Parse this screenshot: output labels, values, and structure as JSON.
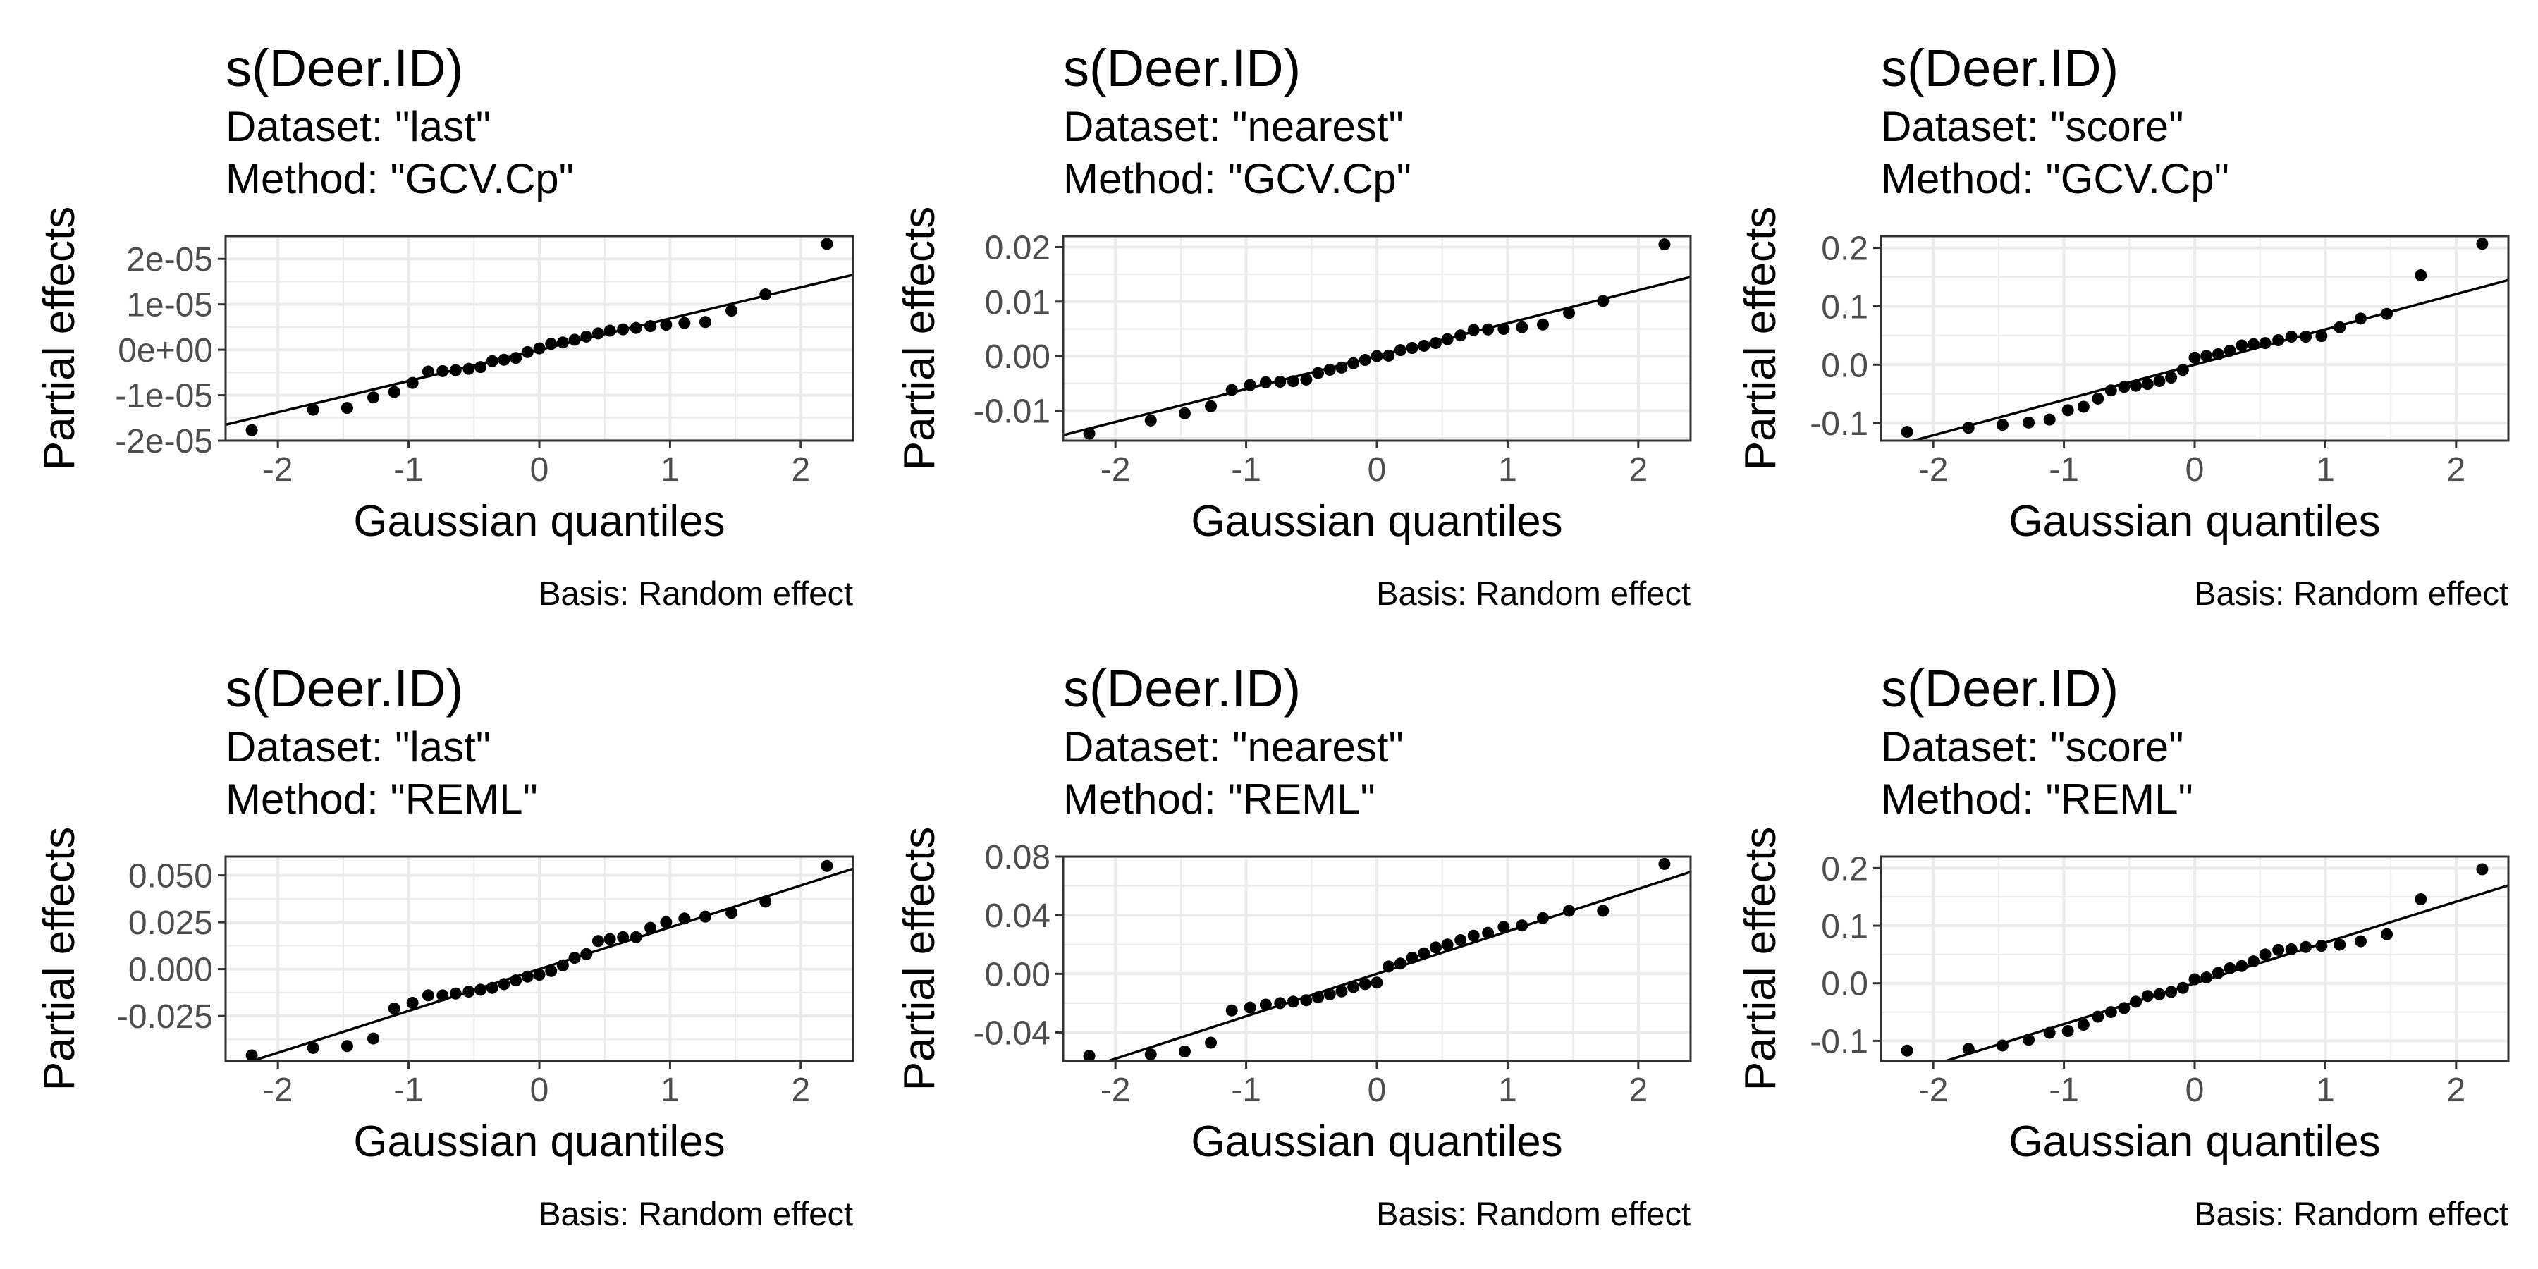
{
  "figure": {
    "background": "#ffffff",
    "point_color": "#000000",
    "line_color": "#000000",
    "grid_color": "#ebebeb"
  },
  "chart_data": [
    {
      "type": "scatter",
      "title": "s(Deer.ID)",
      "subtitle_lines": [
        "Dataset: \"last\"",
        "Method: \"GCV.Cp\""
      ],
      "xlabel": "Gaussian quantiles",
      "ylabel": "Partial effects",
      "caption": "Basis: Random effect",
      "xlim": [
        -2.4,
        2.4
      ],
      "ylim": [
        -2e-05,
        2.5e-05
      ],
      "x_ticks": [
        -2,
        -1,
        0,
        1,
        2
      ],
      "x_tick_labels": [
        "-2",
        "-1",
        "0",
        "1",
        "2"
      ],
      "y_ticks": [
        -2e-05,
        -1e-05,
        0,
        1e-05,
        2e-05
      ],
      "y_tick_labels": [
        "-2e-05",
        "-1e-05",
        "0e+00",
        "1e-05",
        "2e-05"
      ],
      "grid": true,
      "reference_line": {
        "x": [
          -2.4,
          2.4
        ],
        "y": [
          -1.65e-05,
          1.65e-05
        ]
      },
      "x": [
        -2.2,
        -1.73,
        -1.47,
        -1.27,
        -1.11,
        -0.97,
        -0.85,
        -0.74,
        -0.64,
        -0.54,
        -0.45,
        -0.36,
        -0.27,
        -0.18,
        -0.09,
        0,
        0.09,
        0.18,
        0.27,
        0.36,
        0.45,
        0.54,
        0.64,
        0.74,
        0.85,
        0.97,
        1.11,
        1.27,
        1.47,
        1.73,
        2.2
      ],
      "y": [
        -1.77e-05,
        -1.32e-05,
        -1.28e-05,
        -1.05e-05,
        -9.3e-06,
        -7.3e-06,
        -4.8e-06,
        -4.7e-06,
        -4.5e-06,
        -4.2e-06,
        -3.8e-06,
        -2.5e-06,
        -2.2e-06,
        -1.8e-06,
        -5e-07,
        3e-07,
        1.3e-06,
        1.6e-06,
        2.2e-06,
        2.9e-06,
        3.6e-06,
        4.2e-06,
        4.5e-06,
        4.8e-06,
        5.2e-06,
        5.5e-06,
        5.9e-06,
        6.1e-06,
        8.6e-06,
        1.22e-05,
        2.33e-05
      ]
    },
    {
      "type": "scatter",
      "title": "s(Deer.ID)",
      "subtitle_lines": [
        "Dataset: \"nearest\"",
        "Method: \"GCV.Cp\""
      ],
      "xlabel": "Gaussian quantiles",
      "ylabel": "Partial effects",
      "caption": "Basis: Random effect",
      "xlim": [
        -2.4,
        2.4
      ],
      "ylim": [
        -0.0155,
        0.022
      ],
      "x_ticks": [
        -2,
        -1,
        0,
        1,
        2
      ],
      "x_tick_labels": [
        "-2",
        "-1",
        "0",
        "1",
        "2"
      ],
      "y_ticks": [
        -0.01,
        0,
        0.01,
        0.02
      ],
      "y_tick_labels": [
        "-0.01",
        "0.00",
        "0.01",
        "0.02"
      ],
      "grid": true,
      "reference_line": {
        "x": [
          -2.4,
          2.4
        ],
        "y": [
          -0.0145,
          0.0145
        ]
      },
      "x": [
        -2.2,
        -1.73,
        -1.47,
        -1.27,
        -1.11,
        -0.97,
        -0.85,
        -0.74,
        -0.64,
        -0.54,
        -0.45,
        -0.36,
        -0.27,
        -0.18,
        -0.09,
        0,
        0.09,
        0.18,
        0.27,
        0.36,
        0.45,
        0.54,
        0.64,
        0.74,
        0.85,
        0.97,
        1.11,
        1.27,
        1.47,
        1.73,
        2.2
      ],
      "y": [
        -0.0142,
        -0.0118,
        -0.0105,
        -0.0092,
        -0.0062,
        -0.0053,
        -0.0048,
        -0.0047,
        -0.0046,
        -0.0043,
        -0.0031,
        -0.0025,
        -0.0021,
        -0.0013,
        -0.0007,
        0,
        0.0001,
        0.0011,
        0.0015,
        0.0019,
        0.0024,
        0.0031,
        0.0038,
        0.0048,
        0.0049,
        0.005,
        0.0053,
        0.0058,
        0.0079,
        0.0101,
        0.0205
      ]
    },
    {
      "type": "scatter",
      "title": "s(Deer.ID)",
      "subtitle_lines": [
        "Dataset: \"score\"",
        "Method: \"GCV.Cp\""
      ],
      "xlabel": "Gaussian quantiles",
      "ylabel": "Partial effects",
      "caption": "Basis: Random effect",
      "xlim": [
        -2.4,
        2.4
      ],
      "ylim": [
        -0.13,
        0.22
      ],
      "x_ticks": [
        -2,
        -1,
        0,
        1,
        2
      ],
      "x_tick_labels": [
        "-2",
        "-1",
        "0",
        "1",
        "2"
      ],
      "y_ticks": [
        -0.1,
        0,
        0.1,
        0.2
      ],
      "y_tick_labels": [
        "-0.1",
        "0.0",
        "0.1",
        "0.2"
      ],
      "grid": true,
      "reference_line": {
        "x": [
          -2.4,
          2.4
        ],
        "y": [
          -0.145,
          0.145
        ]
      },
      "x": [
        -2.2,
        -1.73,
        -1.47,
        -1.27,
        -1.11,
        -0.97,
        -0.85,
        -0.74,
        -0.64,
        -0.54,
        -0.45,
        -0.36,
        -0.27,
        -0.18,
        -0.09,
        0,
        0.09,
        0.18,
        0.27,
        0.36,
        0.45,
        0.54,
        0.64,
        0.74,
        0.85,
        0.97,
        1.11,
        1.27,
        1.47,
        1.73,
        2.2
      ],
      "y": [
        -0.115,
        -0.108,
        -0.103,
        -0.099,
        -0.094,
        -0.078,
        -0.072,
        -0.058,
        -0.044,
        -0.038,
        -0.036,
        -0.033,
        -0.028,
        -0.022,
        -0.009,
        0.012,
        0.015,
        0.018,
        0.024,
        0.033,
        0.035,
        0.037,
        0.042,
        0.048,
        0.048,
        0.049,
        0.064,
        0.079,
        0.087,
        0.153,
        0.207
      ]
    },
    {
      "type": "scatter",
      "title": "s(Deer.ID)",
      "subtitle_lines": [
        "Dataset: \"last\"",
        "Method: \"REML\""
      ],
      "xlabel": "Gaussian quantiles",
      "ylabel": "Partial effects",
      "caption": "Basis: Random effect",
      "xlim": [
        -2.4,
        2.4
      ],
      "ylim": [
        -0.049,
        0.06
      ],
      "x_ticks": [
        -2,
        -1,
        0,
        1,
        2
      ],
      "x_tick_labels": [
        "-2",
        "-1",
        "0",
        "1",
        "2"
      ],
      "y_ticks": [
        -0.025,
        0,
        0.025,
        0.05
      ],
      "y_tick_labels": [
        "-0.025",
        "0.000",
        "0.025",
        "0.050"
      ],
      "grid": true,
      "reference_line": {
        "x": [
          -2.4,
          2.4
        ],
        "y": [
          -0.0535,
          0.0535
        ]
      },
      "x": [
        -2.2,
        -1.73,
        -1.47,
        -1.27,
        -1.11,
        -0.97,
        -0.85,
        -0.74,
        -0.64,
        -0.54,
        -0.45,
        -0.36,
        -0.27,
        -0.18,
        -0.09,
        0,
        0.09,
        0.18,
        0.27,
        0.36,
        0.45,
        0.54,
        0.64,
        0.74,
        0.85,
        0.97,
        1.11,
        1.27,
        1.47,
        1.73,
        2.2
      ],
      "y": [
        -0.046,
        -0.042,
        -0.041,
        -0.037,
        -0.021,
        -0.018,
        -0.014,
        -0.014,
        -0.013,
        -0.012,
        -0.011,
        -0.01,
        -0.008,
        -0.006,
        -0.004,
        -0.003,
        -0.001,
        0.002,
        0.006,
        0.008,
        0.015,
        0.016,
        0.017,
        0.017,
        0.022,
        0.025,
        0.027,
        0.028,
        0.03,
        0.036,
        0.055
      ]
    },
    {
      "type": "scatter",
      "title": "s(Deer.ID)",
      "subtitle_lines": [
        "Dataset: \"nearest\"",
        "Method: \"REML\""
      ],
      "xlabel": "Gaussian quantiles",
      "ylabel": "Partial effects",
      "caption": "Basis: Random effect",
      "xlim": [
        -2.4,
        2.4
      ],
      "ylim": [
        -0.0595,
        0.08
      ],
      "x_ticks": [
        -2,
        -1,
        0,
        1,
        2
      ],
      "x_tick_labels": [
        "-2",
        "-1",
        "0",
        "1",
        "2"
      ],
      "y_ticks": [
        -0.04,
        0,
        0.04,
        0.08
      ],
      "y_tick_labels": [
        "-0.04",
        "0.00",
        "0.04",
        "0.08"
      ],
      "grid": true,
      "reference_line": {
        "x": [
          -2.4,
          2.4
        ],
        "y": [
          -0.0695,
          0.0695
        ]
      },
      "x": [
        -2.2,
        -1.73,
        -1.47,
        -1.27,
        -1.11,
        -0.97,
        -0.85,
        -0.74,
        -0.64,
        -0.54,
        -0.45,
        -0.36,
        -0.27,
        -0.18,
        -0.09,
        0,
        0.09,
        0.18,
        0.27,
        0.36,
        0.45,
        0.54,
        0.64,
        0.74,
        0.85,
        0.97,
        1.11,
        1.27,
        1.47,
        1.73,
        2.2
      ],
      "y": [
        -0.056,
        -0.055,
        -0.053,
        -0.047,
        -0.025,
        -0.023,
        -0.021,
        -0.02,
        -0.019,
        -0.018,
        -0.016,
        -0.014,
        -0.012,
        -0.009,
        -0.007,
        -0.006,
        0.005,
        0.007,
        0.011,
        0.014,
        0.018,
        0.02,
        0.023,
        0.026,
        0.028,
        0.032,
        0.033,
        0.038,
        0.043,
        0.043,
        0.075
      ]
    },
    {
      "type": "scatter",
      "title": "s(Deer.ID)",
      "subtitle_lines": [
        "Dataset: \"score\"",
        "Method: \"REML\""
      ],
      "xlabel": "Gaussian quantiles",
      "ylabel": "Partial effects",
      "caption": "Basis: Random effect",
      "xlim": [
        -2.4,
        2.4
      ],
      "ylim": [
        -0.135,
        0.22
      ],
      "x_ticks": [
        -2,
        -1,
        0,
        1,
        2
      ],
      "x_tick_labels": [
        "-2",
        "-1",
        "0",
        "1",
        "2"
      ],
      "y_ticks": [
        -0.1,
        0,
        0.1,
        0.2
      ],
      "y_tick_labels": [
        "-0.1",
        "0.0",
        "0.1",
        "0.2"
      ],
      "grid": true,
      "reference_line": {
        "x": [
          -2.4,
          2.4
        ],
        "y": [
          -0.17,
          0.17
        ]
      },
      "x": [
        -2.2,
        -1.73,
        -1.47,
        -1.27,
        -1.11,
        -0.97,
        -0.85,
        -0.74,
        -0.64,
        -0.54,
        -0.45,
        -0.36,
        -0.27,
        -0.18,
        -0.09,
        0,
        0.09,
        0.18,
        0.27,
        0.36,
        0.45,
        0.54,
        0.64,
        0.74,
        0.85,
        0.97,
        1.11,
        1.27,
        1.47,
        1.73,
        2.2
      ],
      "y": [
        -0.117,
        -0.114,
        -0.108,
        -0.098,
        -0.086,
        -0.083,
        -0.072,
        -0.058,
        -0.05,
        -0.043,
        -0.032,
        -0.022,
        -0.019,
        -0.015,
        -0.008,
        0.007,
        0.01,
        0.018,
        0.026,
        0.03,
        0.038,
        0.05,
        0.058,
        0.059,
        0.063,
        0.065,
        0.067,
        0.073,
        0.085,
        0.146,
        0.198
      ]
    }
  ]
}
